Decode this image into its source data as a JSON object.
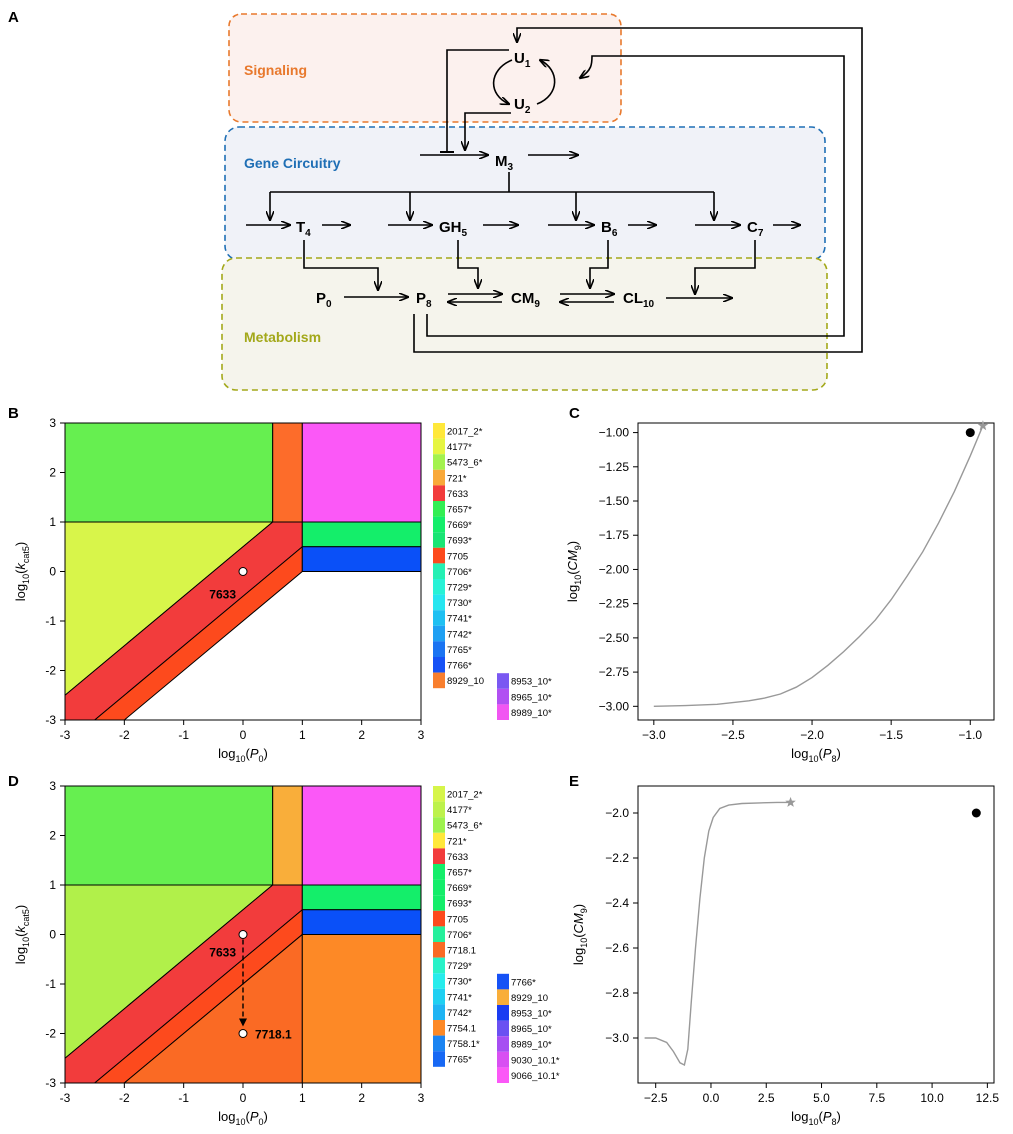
{
  "panels": {
    "A": "A",
    "B": "B",
    "C": "C",
    "D": "D",
    "E": "E"
  },
  "diagram": {
    "groups": [
      {
        "id": "signaling",
        "label": "Signaling",
        "color": "#e8792d",
        "fill": "#fcf1ee"
      },
      {
        "id": "gene",
        "label": "Gene Circuitry",
        "color": "#1f6fb5",
        "fill": "#f0f2f8"
      },
      {
        "id": "metabolism",
        "label": "Metabolism",
        "color": "#a3a81a",
        "fill": "#f5f4ec"
      }
    ],
    "nodes": [
      {
        "id": "U1",
        "base": "U",
        "sub": "1"
      },
      {
        "id": "U2",
        "base": "U",
        "sub": "2"
      },
      {
        "id": "M3",
        "base": "M",
        "sub": "3"
      },
      {
        "id": "T4",
        "base": "T",
        "sub": "4"
      },
      {
        "id": "GH5",
        "base": "GH",
        "sub": "5"
      },
      {
        "id": "B6",
        "base": "B",
        "sub": "6"
      },
      {
        "id": "C7",
        "base": "C",
        "sub": "7"
      },
      {
        "id": "P0",
        "base": "P",
        "sub": "0"
      },
      {
        "id": "P8",
        "base": "P",
        "sub": "8"
      },
      {
        "id": "CM9",
        "base": "CM",
        "sub": "9"
      },
      {
        "id": "CL10",
        "base": "CL",
        "sub": "10"
      }
    ]
  },
  "phase_axes": {
    "xlabel": "log10(P0)",
    "ylabel": "log10(kcat5)",
    "xlim": [
      -3,
      3
    ],
    "ylim": [
      -3,
      3
    ],
    "ticks": [
      "-3",
      "-2",
      "-1",
      "0",
      "1",
      "2",
      "3"
    ]
  },
  "chart_data": [
    {
      "panel": "B",
      "type": "heatmap",
      "xlabel": "log10(P0)",
      "ylabel": "log10(kcat5)",
      "xlim": [
        -3,
        3
      ],
      "ylim": [
        -3,
        3
      ],
      "regions": [
        {
          "label": "5473_6*",
          "color": "#66ef50"
        },
        {
          "label": "7705",
          "color": "#fd6c2a"
        },
        {
          "label": "8989_10*",
          "color": "#fb58f7"
        },
        {
          "label": "2017_2*",
          "color": "#d8f54a"
        },
        {
          "label": "7633",
          "color": "#f23c3c"
        },
        {
          "label": "7705",
          "color": "#fd4a1d"
        },
        {
          "label": "7669*",
          "color": "#14ee6a"
        },
        {
          "label": "7766*",
          "color": "#0a50f8"
        },
        {
          "label": "white",
          "color": "#ffffff"
        }
      ],
      "marker": {
        "x": 0,
        "y": 0,
        "label": "7633"
      },
      "legend": [
        {
          "label": "2017_2*",
          "color": "#ffe83a"
        },
        {
          "label": "4177*",
          "color": "#e6f542"
        },
        {
          "label": "5473_6*",
          "color": "#a3f24e"
        },
        {
          "label": "721*",
          "color": "#f9a93a"
        },
        {
          "label": "7633",
          "color": "#f23c3c"
        },
        {
          "label": "7657*",
          "color": "#33ee53"
        },
        {
          "label": "7669*",
          "color": "#14ee6a"
        },
        {
          "label": "7693*",
          "color": "#19e574"
        },
        {
          "label": "7705",
          "color": "#fd4a1d"
        },
        {
          "label": "7706*",
          "color": "#25f0b4"
        },
        {
          "label": "7729*",
          "color": "#28f2d6"
        },
        {
          "label": "7730*",
          "color": "#26e6f0"
        },
        {
          "label": "7741*",
          "color": "#1fc0f2"
        },
        {
          "label": "7742*",
          "color": "#1fa0f3"
        },
        {
          "label": "7765*",
          "color": "#1b74f2"
        },
        {
          "label": "7766*",
          "color": "#1652f6"
        },
        {
          "label": "8929_10",
          "color": "#f97f2e"
        }
      ],
      "legend2": [
        {
          "label": "8953_10*",
          "color": "#7a58f2"
        },
        {
          "label": "8965_10*",
          "color": "#b150f2"
        },
        {
          "label": "8989_10*",
          "color": "#f156f2"
        }
      ]
    },
    {
      "panel": "C",
      "type": "line",
      "xlabel": "log10(P8)",
      "ylabel": "log10(CM9)",
      "xlim": [
        -3.1,
        -0.85
      ],
      "ylim": [
        -3.1,
        -0.93
      ],
      "xticks": [
        -3.0,
        -2.5,
        -2.0,
        -1.5,
        -1.0
      ],
      "xtick_labels": [
        "−3.0",
        "−2.5",
        "−2.0",
        "−1.5",
        "−1.0"
      ],
      "yticks": [
        -1.0,
        -1.25,
        -1.5,
        -1.75,
        -2.0,
        -2.25,
        -2.5,
        -2.75,
        -3.0
      ],
      "ytick_labels": [
        "−1.00",
        "−1.25",
        "−1.50",
        "−1.75",
        "−2.00",
        "−2.25",
        "−2.50",
        "−2.75",
        "−3.00"
      ],
      "x": [
        -3.0,
        -2.8,
        -2.6,
        -2.4,
        -2.3,
        -2.2,
        -2.1,
        -2.0,
        -1.9,
        -1.8,
        -1.7,
        -1.6,
        -1.5,
        -1.4,
        -1.3,
        -1.2,
        -1.1,
        -1.0,
        -0.92
      ],
      "y": [
        -3.0,
        -2.995,
        -2.985,
        -2.96,
        -2.94,
        -2.91,
        -2.86,
        -2.79,
        -2.7,
        -2.6,
        -2.49,
        -2.37,
        -2.22,
        -2.05,
        -1.87,
        -1.66,
        -1.43,
        -1.17,
        -0.95
      ],
      "end_star": {
        "x": -0.92,
        "y": -0.95
      },
      "dot": {
        "x": -1.0,
        "y": -1.0
      }
    },
    {
      "panel": "D",
      "type": "heatmap",
      "xlabel": "log10(P0)",
      "ylabel": "log10(kcat5)",
      "xlim": [
        -3,
        3
      ],
      "ylim": [
        -3,
        3
      ],
      "regions": [
        {
          "label": "5473_6*",
          "color": "#66ef50"
        },
        {
          "label": "8929_10",
          "color": "#f9ae3a"
        },
        {
          "label": "9066_10.1*",
          "color": "#fb58f7"
        },
        {
          "label": "2017_2*",
          "color": "#b1f04a"
        },
        {
          "label": "7633",
          "color": "#f23c3c"
        },
        {
          "label": "7705",
          "color": "#fd4a1d"
        },
        {
          "label": "7669*",
          "color": "#14ee6a"
        },
        {
          "label": "7766*",
          "color": "#0a50f8"
        },
        {
          "label": "7718.1",
          "color": "#fa6a24"
        },
        {
          "label": "7754.1",
          "color": "#fd8926"
        }
      ],
      "marker": {
        "x": 0,
        "y": 0,
        "label": "7633"
      },
      "marker2": {
        "x": 0,
        "y": -2,
        "label": "7718.1"
      },
      "legend": [
        {
          "label": "2017_2*",
          "color": "#d6f54a"
        },
        {
          "label": "4177*",
          "color": "#bdf24c"
        },
        {
          "label": "5473_6*",
          "color": "#9ef24e"
        },
        {
          "label": "721*",
          "color": "#ffe83a"
        },
        {
          "label": "7633",
          "color": "#f23c3c"
        },
        {
          "label": "7657*",
          "color": "#14ee6a"
        },
        {
          "label": "7669*",
          "color": "#14ee6a"
        },
        {
          "label": "7693*",
          "color": "#14ee6a"
        },
        {
          "label": "7705",
          "color": "#fd4a1d"
        },
        {
          "label": "7706*",
          "color": "#25f09c"
        },
        {
          "label": "7718.1",
          "color": "#fa6a24"
        },
        {
          "label": "7729*",
          "color": "#28f2c8"
        },
        {
          "label": "7730*",
          "color": "#26ecec"
        },
        {
          "label": "7741*",
          "color": "#1fd0f2"
        },
        {
          "label": "7742*",
          "color": "#1fb4f3"
        },
        {
          "label": "7754.1",
          "color": "#fd8926"
        },
        {
          "label": "7758.1*",
          "color": "#1b84f2"
        },
        {
          "label": "7765*",
          "color": "#1768f4"
        }
      ],
      "legend2": [
        {
          "label": "7766*",
          "color": "#1652f6"
        },
        {
          "label": "8929_10",
          "color": "#f9ae3a"
        },
        {
          "label": "8953_10*",
          "color": "#1a3cf2"
        },
        {
          "label": "8965_10*",
          "color": "#6a50f2"
        },
        {
          "label": "8989_10*",
          "color": "#a64ef2"
        },
        {
          "label": "9030_10.1*",
          "color": "#d850f2"
        },
        {
          "label": "9066_10.1*",
          "color": "#fb58f7"
        }
      ]
    },
    {
      "panel": "E",
      "type": "line",
      "xlabel": "log10(P8)",
      "ylabel": "log10(CM9)",
      "xlim": [
        -3.3,
        12.8
      ],
      "ylim": [
        -3.2,
        -1.88
      ],
      "xticks": [
        -2.5,
        0.0,
        2.5,
        5.0,
        7.5,
        10.0,
        12.5
      ],
      "xtick_labels": [
        "−2.5",
        "0.0",
        "2.5",
        "5.0",
        "7.5",
        "10.0",
        "12.5"
      ],
      "yticks": [
        -2.0,
        -2.2,
        -2.4,
        -2.6,
        -2.8,
        -3.0
      ],
      "ytick_labels": [
        "−2.0",
        "−2.2",
        "−2.4",
        "−2.6",
        "−2.8",
        "−3.0"
      ],
      "x": [
        -3.0,
        -2.5,
        -2.0,
        -1.7,
        -1.4,
        -1.2,
        -1.05,
        -0.9,
        -0.7,
        -0.5,
        -0.3,
        -0.1,
        0.1,
        0.4,
        0.8,
        1.4,
        2.2,
        3.0,
        3.6
      ],
      "y": [
        -3.0,
        -3.0,
        -3.02,
        -3.06,
        -3.11,
        -3.12,
        -3.05,
        -2.85,
        -2.6,
        -2.38,
        -2.2,
        -2.08,
        -2.02,
        -1.98,
        -1.965,
        -1.958,
        -1.955,
        -1.953,
        -1.953
      ],
      "end_star": {
        "x": 3.6,
        "y": -1.953
      },
      "dot": {
        "x": 12.0,
        "y": -2.0
      }
    }
  ]
}
